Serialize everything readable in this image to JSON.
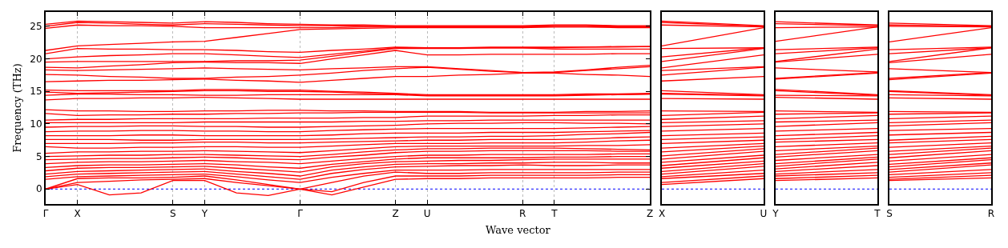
{
  "chart_data": [
    {
      "type": "line",
      "xlabel": "Wave vector",
      "ylabel": "Frequency (THz)",
      "color": "#ff0000",
      "grid": "x",
      "categories": [
        "Γ",
        "X",
        null,
        null,
        "S",
        "Y",
        null,
        null,
        "Γ",
        null,
        null,
        "Z",
        "U",
        null,
        null,
        "R",
        "T",
        null,
        null,
        "Z"
      ],
      "ylim": [
        -2.3,
        27.2
      ],
      "yticks": [
        0,
        5,
        10,
        15,
        20,
        25
      ],
      "ref_lines": [
        {
          "axis": "y",
          "value": 0,
          "color": "#0000ff",
          "line_style": "dotted"
        }
      ],
      "series": [
        {
          "values": [
            0,
            0.7,
            -0.9,
            -0.6,
            1.3,
            1.3,
            -0.6,
            -1.0,
            0,
            -0.9,
            0.3,
            1.5,
            1.6,
            1.6,
            1.7,
            1.7,
            1.7,
            1.7,
            1.8,
            1.8
          ]
        },
        {
          "values": [
            0,
            1.0,
            1.2,
            1.4,
            1.5,
            1.6,
            1.0,
            0.5,
            0,
            -0.4,
            1.0,
            2.0,
            2.0,
            2.0,
            2.1,
            2.1,
            2.1,
            2.1,
            2.2,
            2.2
          ]
        },
        {
          "values": [
            0,
            1.6,
            1.7,
            1.7,
            1.8,
            2.0,
            1.4,
            0.7,
            0,
            1.0,
            2.0,
            2.6,
            2.4,
            2.4,
            2.5,
            2.5,
            2.5,
            2.5,
            2.6,
            2.6
          ]
        },
        {
          "values": [
            1.5,
            1.9,
            2.0,
            2.1,
            2.2,
            2.3,
            1.9,
            1.4,
            1.0,
            1.8,
            2.4,
            2.9,
            2.9,
            2.9,
            3.0,
            3.0,
            3.0,
            3.0,
            3.0,
            3.0
          ]
        },
        {
          "values": [
            1.9,
            2.3,
            2.4,
            2.5,
            2.6,
            2.7,
            2.3,
            1.9,
            1.5,
            2.4,
            3.0,
            3.4,
            3.5,
            3.6,
            3.6,
            3.7,
            3.6,
            3.6,
            3.7,
            3.7
          ]
        },
        {
          "values": [
            2.3,
            2.7,
            2.8,
            2.9,
            3.0,
            3.1,
            2.7,
            2.4,
            2.0,
            2.9,
            3.4,
            3.8,
            3.9,
            3.9,
            4.0,
            4.0,
            4.1,
            4.1,
            4.0,
            4.0
          ]
        },
        {
          "values": [
            2.8,
            3.2,
            3.3,
            3.3,
            3.4,
            3.5,
            3.2,
            2.9,
            2.6,
            3.4,
            3.9,
            4.2,
            4.3,
            4.4,
            4.4,
            4.5,
            4.6,
            4.6,
            4.6,
            4.6
          ]
        },
        {
          "values": [
            3.3,
            3.6,
            3.7,
            3.7,
            3.8,
            3.9,
            3.7,
            3.4,
            3.2,
            3.8,
            4.2,
            4.6,
            4.8,
            4.8,
            4.8,
            4.8,
            4.9,
            4.9,
            5.0,
            5.0
          ]
        },
        {
          "values": [
            3.9,
            4.1,
            4.2,
            4.2,
            4.3,
            4.4,
            4.2,
            4.1,
            3.9,
            4.3,
            4.7,
            5.0,
            5.2,
            5.2,
            5.3,
            5.3,
            5.3,
            5.3,
            5.4,
            5.4
          ]
        },
        {
          "values": [
            4.5,
            4.6,
            4.7,
            4.7,
            4.8,
            4.9,
            4.8,
            4.6,
            4.5,
            4.9,
            5.2,
            5.6,
            5.8,
            5.8,
            5.9,
            5.9,
            5.9,
            5.9,
            5.8,
            5.8
          ]
        },
        {
          "values": [
            5.0,
            5.1,
            5.2,
            5.2,
            5.3,
            5.3,
            5.2,
            5.1,
            5.0,
            5.3,
            5.7,
            6.0,
            6.2,
            6.2,
            6.3,
            6.3,
            6.3,
            6.2,
            6.1,
            6.0
          ]
        },
        {
          "values": [
            5.5,
            5.7,
            5.7,
            5.8,
            5.8,
            5.9,
            5.8,
            5.7,
            5.6,
            5.9,
            6.2,
            6.5,
            6.6,
            6.6,
            6.6,
            6.6,
            6.6,
            6.7,
            6.7,
            6.8
          ]
        },
        {
          "values": [
            6.5,
            6.3,
            6.3,
            6.4,
            6.4,
            6.5,
            6.5,
            6.4,
            6.4,
            6.6,
            6.8,
            7.0,
            7.0,
            7.0,
            7.1,
            7.1,
            7.1,
            7.2,
            7.4,
            7.5
          ]
        },
        {
          "values": [
            7.0,
            7.0,
            7.0,
            7.1,
            7.1,
            7.2,
            7.2,
            7.1,
            7.1,
            7.2,
            7.3,
            7.4,
            7.5,
            7.5,
            7.6,
            7.6,
            7.6,
            7.7,
            7.9,
            8.0
          ]
        },
        {
          "values": [
            7.6,
            7.6,
            7.6,
            7.5,
            7.5,
            7.6,
            7.6,
            7.6,
            7.6,
            7.7,
            7.8,
            7.9,
            8.0,
            8.0,
            8.1,
            8.1,
            8.2,
            8.4,
            8.5,
            8.7
          ]
        },
        {
          "values": [
            8.2,
            8.2,
            8.2,
            8.3,
            8.3,
            8.2,
            8.2,
            8.2,
            8.2,
            8.3,
            8.5,
            8.6,
            8.6,
            8.6,
            8.7,
            8.7,
            8.7,
            8.8,
            8.9,
            9.0
          ]
        },
        {
          "values": [
            8.8,
            8.9,
            8.9,
            9.0,
            9.0,
            8.9,
            8.9,
            8.8,
            8.8,
            9.0,
            9.1,
            9.2,
            9.3,
            9.3,
            9.3,
            9.3,
            9.3,
            9.4,
            9.5,
            9.6
          ]
        },
        {
          "values": [
            9.5,
            9.6,
            9.6,
            9.7,
            9.7,
            9.6,
            9.6,
            9.5,
            9.5,
            9.6,
            9.7,
            9.8,
            10.0,
            10.1,
            10.1,
            10.2,
            10.2,
            10.1,
            10.1,
            10.0
          ]
        },
        {
          "values": [
            10.2,
            10.2,
            10.2,
            10.2,
            10.2,
            10.3,
            10.3,
            10.3,
            10.3,
            10.3,
            10.4,
            10.4,
            10.5,
            10.5,
            10.6,
            10.6,
            10.6,
            10.6,
            10.6,
            10.6
          ]
        },
        {
          "values": [
            10.6,
            10.7,
            10.7,
            10.8,
            10.8,
            10.8,
            10.8,
            10.9,
            10.9,
            10.9,
            11.0,
            11.0,
            11.2,
            11.2,
            11.2,
            11.2,
            11.3,
            11.3,
            11.4,
            11.4
          ]
        },
        {
          "values": [
            11.6,
            11.3,
            11.4,
            11.4,
            11.5,
            11.5,
            11.6,
            11.6,
            11.7,
            11.7,
            11.8,
            11.8,
            11.8,
            11.8,
            11.7,
            11.7,
            11.7,
            11.7,
            11.7,
            11.7
          ]
        },
        {
          "values": [
            12.2,
            12.0,
            12.0,
            11.9,
            11.9,
            12.0,
            12.0,
            12.1,
            12.1,
            12.0,
            12.0,
            11.9,
            11.9,
            11.9,
            11.8,
            11.8,
            11.8,
            11.9,
            11.9,
            12.0
          ]
        },
        {
          "values": [
            13.7,
            13.9,
            13.9,
            14.0,
            14.0,
            14.1,
            14.0,
            13.9,
            13.8,
            13.8,
            13.8,
            13.8,
            13.8,
            13.8,
            13.8,
            13.8,
            13.8,
            13.8,
            13.8,
            13.8
          ]
        },
        {
          "values": [
            14.4,
            14.6,
            14.6,
            14.5,
            14.5,
            14.4,
            14.4,
            14.5,
            14.5,
            14.5,
            14.5,
            14.5,
            14.3,
            14.3,
            14.3,
            14.3,
            14.3,
            14.4,
            14.5,
            14.6
          ]
        },
        {
          "values": [
            14.9,
            14.7,
            14.8,
            14.9,
            15.0,
            15.1,
            15.1,
            15.0,
            15.0,
            14.9,
            14.7,
            14.6,
            14.4,
            14.4,
            14.4,
            14.4,
            14.4,
            14.5,
            14.5,
            14.6
          ]
        },
        {
          "values": [
            15.2,
            15.1,
            15.1,
            15.1,
            15.1,
            15.3,
            15.3,
            15.2,
            15.2,
            15.0,
            14.9,
            14.7,
            14.5,
            14.5,
            14.5,
            14.5,
            14.5,
            14.6,
            14.6,
            14.7
          ]
        },
        {
          "values": [
            16.5,
            16.6,
            16.7,
            16.7,
            16.8,
            16.9,
            16.7,
            16.6,
            16.4,
            16.7,
            17.0,
            17.3,
            17.3,
            17.5,
            17.6,
            17.8,
            17.8,
            17.6,
            17.5,
            17.3
          ]
        },
        {
          "values": [
            17.6,
            17.5,
            17.3,
            17.2,
            17.0,
            17.0,
            17.2,
            17.3,
            17.5,
            17.8,
            18.2,
            18.5,
            18.7,
            18.4,
            18.1,
            17.9,
            17.9,
            18.2,
            18.5,
            18.8
          ]
        },
        {
          "values": [
            18.3,
            18.2,
            18.3,
            18.4,
            18.5,
            18.6,
            18.5,
            18.4,
            18.3,
            18.5,
            18.6,
            18.8,
            18.8,
            18.5,
            18.2,
            17.9,
            18.0,
            18.3,
            18.7,
            19.0
          ]
        },
        {
          "values": [
            18.7,
            18.6,
            18.9,
            19.1,
            19.4,
            19.5,
            19.4,
            19.4,
            19.3,
            20.0,
            20.6,
            21.3,
            20.6,
            20.6,
            20.7,
            20.7,
            20.7,
            20.7,
            20.8,
            20.8
          ]
        },
        {
          "values": [
            19.5,
            19.6,
            19.6,
            19.6,
            19.6,
            19.6,
            19.7,
            19.7,
            19.8,
            20.4,
            21.0,
            21.6,
            21.6,
            21.6,
            21.7,
            21.7,
            21.5,
            21.5,
            21.5,
            21.5
          ]
        },
        {
          "values": [
            20.0,
            20.3,
            20.5,
            20.6,
            20.8,
            20.8,
            20.6,
            20.4,
            20.2,
            20.7,
            21.2,
            21.7,
            21.7,
            21.7,
            21.7,
            21.7,
            21.7,
            21.8,
            21.8,
            21.9
          ]
        },
        {
          "values": [
            20.8,
            21.6,
            21.5,
            21.5,
            21.4,
            21.4,
            21.3,
            21.1,
            21.0,
            21.3,
            21.5,
            21.8,
            21.7,
            21.7,
            21.8,
            21.8,
            21.8,
            21.8,
            21.9,
            21.9
          ]
        },
        {
          "values": [
            21.3,
            22.0,
            22.2,
            22.4,
            22.6,
            22.7,
            23.3,
            23.9,
            24.5,
            24.6,
            24.7,
            24.8,
            24.8,
            24.8,
            24.8,
            24.8,
            24.9,
            24.9,
            24.8,
            24.8
          ]
        },
        {
          "values": [
            24.7,
            25.2,
            25.1,
            25.1,
            25.0,
            24.8,
            24.8,
            24.8,
            24.8,
            24.8,
            24.9,
            24.9,
            24.9,
            24.9,
            24.9,
            24.9,
            24.9,
            24.9,
            24.9,
            24.9
          ]
        },
        {
          "values": [
            25.0,
            25.6,
            25.5,
            25.3,
            25.2,
            25.4,
            25.3,
            25.2,
            25.1,
            25.1,
            25.0,
            25.0,
            25.0,
            25.0,
            25.0,
            25.0,
            25.1,
            25.1,
            25.0,
            25.0
          ]
        },
        {
          "values": [
            25.3,
            25.8,
            25.7,
            25.6,
            25.5,
            25.7,
            25.6,
            25.4,
            25.3,
            25.2,
            25.2,
            25.1,
            25.1,
            25.1,
            25.1,
            25.1,
            25.2,
            25.2,
            25.1,
            25.1
          ]
        }
      ]
    },
    {
      "type": "line",
      "color": "#ff0000",
      "tick_labels": "x",
      "categories": [
        "X",
        "U"
      ],
      "ylim": [
        -2.3,
        27.2
      ],
      "yticks": [
        0,
        5,
        10,
        15,
        20,
        25
      ],
      "ref_lines": [
        {
          "axis": "y",
          "value": 0,
          "color": "#0000ff",
          "line_style": "dotted"
        }
      ],
      "series": [
        {
          "values": [
            0.7,
            1.6
          ]
        },
        {
          "values": [
            1.0,
            2.0
          ]
        },
        {
          "values": [
            1.6,
            2.4
          ]
        },
        {
          "values": [
            1.9,
            2.9
          ]
        },
        {
          "values": [
            2.3,
            3.5
          ]
        },
        {
          "values": [
            2.7,
            3.9
          ]
        },
        {
          "values": [
            3.2,
            4.3
          ]
        },
        {
          "values": [
            3.6,
            4.8
          ]
        },
        {
          "values": [
            4.1,
            5.2
          ]
        },
        {
          "values": [
            4.6,
            5.8
          ]
        },
        {
          "values": [
            5.1,
            6.2
          ]
        },
        {
          "values": [
            5.7,
            6.6
          ]
        },
        {
          "values": [
            6.3,
            7.0
          ]
        },
        {
          "values": [
            7.0,
            7.5
          ]
        },
        {
          "values": [
            7.6,
            8.0
          ]
        },
        {
          "values": [
            8.2,
            8.6
          ]
        },
        {
          "values": [
            8.9,
            9.3
          ]
        },
        {
          "values": [
            9.6,
            10.0
          ]
        },
        {
          "values": [
            10.2,
            10.5
          ]
        },
        {
          "values": [
            10.7,
            11.2
          ]
        },
        {
          "values": [
            11.3,
            11.8
          ]
        },
        {
          "values": [
            12.0,
            11.9
          ]
        },
        {
          "values": [
            13.9,
            13.8
          ]
        },
        {
          "values": [
            14.6,
            14.3
          ]
        },
        {
          "values": [
            14.7,
            14.4
          ]
        },
        {
          "values": [
            15.1,
            14.5
          ]
        },
        {
          "values": [
            16.6,
            17.3
          ]
        },
        {
          "values": [
            17.5,
            18.7
          ]
        },
        {
          "values": [
            18.2,
            18.8
          ]
        },
        {
          "values": [
            18.6,
            20.6
          ]
        },
        {
          "values": [
            19.6,
            21.6
          ]
        },
        {
          "values": [
            20.3,
            21.7
          ]
        },
        {
          "values": [
            21.6,
            21.7
          ]
        },
        {
          "values": [
            22.0,
            24.8
          ]
        },
        {
          "values": [
            25.2,
            24.9
          ]
        },
        {
          "values": [
            25.6,
            25.0
          ]
        },
        {
          "values": [
            25.8,
            25.1
          ]
        }
      ]
    },
    {
      "type": "line",
      "color": "#ff0000",
      "tick_labels": "x",
      "categories": [
        "Y",
        "T"
      ],
      "ylim": [
        -2.3,
        27.2
      ],
      "yticks": [
        0,
        5,
        10,
        15,
        20,
        25
      ],
      "ref_lines": [
        {
          "axis": "y",
          "value": 0,
          "color": "#0000ff",
          "line_style": "dotted"
        }
      ],
      "series": [
        {
          "values": [
            1.3,
            1.7
          ]
        },
        {
          "values": [
            1.6,
            2.1
          ]
        },
        {
          "values": [
            2.0,
            2.5
          ]
        },
        {
          "values": [
            2.3,
            3.0
          ]
        },
        {
          "values": [
            2.7,
            3.6
          ]
        },
        {
          "values": [
            3.1,
            4.1
          ]
        },
        {
          "values": [
            3.5,
            4.6
          ]
        },
        {
          "values": [
            3.9,
            4.9
          ]
        },
        {
          "values": [
            4.4,
            5.3
          ]
        },
        {
          "values": [
            4.9,
            5.9
          ]
        },
        {
          "values": [
            5.3,
            6.3
          ]
        },
        {
          "values": [
            5.9,
            6.6
          ]
        },
        {
          "values": [
            6.5,
            7.1
          ]
        },
        {
          "values": [
            7.2,
            7.6
          ]
        },
        {
          "values": [
            7.6,
            8.2
          ]
        },
        {
          "values": [
            8.2,
            8.7
          ]
        },
        {
          "values": [
            8.9,
            9.3
          ]
        },
        {
          "values": [
            9.6,
            10.2
          ]
        },
        {
          "values": [
            10.3,
            10.6
          ]
        },
        {
          "values": [
            10.8,
            11.3
          ]
        },
        {
          "values": [
            11.5,
            11.7
          ]
        },
        {
          "values": [
            12.0,
            11.8
          ]
        },
        {
          "values": [
            14.1,
            13.8
          ]
        },
        {
          "values": [
            14.4,
            14.3
          ]
        },
        {
          "values": [
            15.1,
            14.4
          ]
        },
        {
          "values": [
            15.3,
            14.5
          ]
        },
        {
          "values": [
            16.9,
            17.8
          ]
        },
        {
          "values": [
            17.0,
            17.9
          ]
        },
        {
          "values": [
            18.6,
            18.0
          ]
        },
        {
          "values": [
            19.5,
            20.7
          ]
        },
        {
          "values": [
            19.6,
            21.5
          ]
        },
        {
          "values": [
            20.8,
            21.7
          ]
        },
        {
          "values": [
            21.4,
            21.8
          ]
        },
        {
          "values": [
            22.7,
            24.9
          ]
        },
        {
          "values": [
            24.8,
            24.9
          ]
        },
        {
          "values": [
            25.4,
            25.1
          ]
        },
        {
          "values": [
            25.7,
            25.2
          ]
        }
      ]
    },
    {
      "type": "line",
      "color": "#ff0000",
      "tick_labels": "x",
      "categories": [
        "S",
        "R"
      ],
      "ylim": [
        -2.3,
        27.2
      ],
      "yticks": [
        0,
        5,
        10,
        15,
        20,
        25
      ],
      "ref_lines": [
        {
          "axis": "y",
          "value": 0,
          "color": "#0000ff",
          "line_style": "dotted"
        }
      ],
      "series": [
        {
          "values": [
            1.3,
            1.7
          ]
        },
        {
          "values": [
            1.5,
            2.1
          ]
        },
        {
          "values": [
            1.8,
            2.5
          ]
        },
        {
          "values": [
            2.2,
            3.0
          ]
        },
        {
          "values": [
            2.6,
            3.7
          ]
        },
        {
          "values": [
            3.0,
            4.0
          ]
        },
        {
          "values": [
            3.4,
            4.5
          ]
        },
        {
          "values": [
            3.8,
            4.8
          ]
        },
        {
          "values": [
            4.3,
            5.3
          ]
        },
        {
          "values": [
            4.8,
            5.9
          ]
        },
        {
          "values": [
            5.3,
            6.3
          ]
        },
        {
          "values": [
            5.8,
            6.6
          ]
        },
        {
          "values": [
            6.4,
            7.1
          ]
        },
        {
          "values": [
            7.1,
            7.6
          ]
        },
        {
          "values": [
            7.5,
            8.1
          ]
        },
        {
          "values": [
            8.3,
            8.7
          ]
        },
        {
          "values": [
            9.0,
            9.3
          ]
        },
        {
          "values": [
            9.7,
            10.2
          ]
        },
        {
          "values": [
            10.2,
            10.6
          ]
        },
        {
          "values": [
            10.8,
            11.2
          ]
        },
        {
          "values": [
            11.5,
            11.7
          ]
        },
        {
          "values": [
            11.9,
            11.8
          ]
        },
        {
          "values": [
            14.0,
            13.8
          ]
        },
        {
          "values": [
            14.5,
            14.3
          ]
        },
        {
          "values": [
            15.0,
            14.4
          ]
        },
        {
          "values": [
            15.1,
            14.5
          ]
        },
        {
          "values": [
            16.8,
            17.8
          ]
        },
        {
          "values": [
            17.0,
            17.9
          ]
        },
        {
          "values": [
            18.5,
            17.9
          ]
        },
        {
          "values": [
            19.4,
            20.7
          ]
        },
        {
          "values": [
            19.6,
            21.7
          ]
        },
        {
          "values": [
            20.8,
            21.7
          ]
        },
        {
          "values": [
            21.4,
            21.8
          ]
        },
        {
          "values": [
            22.6,
            24.8
          ]
        },
        {
          "values": [
            25.0,
            24.9
          ]
        },
        {
          "values": [
            25.2,
            25.0
          ]
        },
        {
          "values": [
            25.5,
            25.1
          ]
        }
      ]
    }
  ]
}
